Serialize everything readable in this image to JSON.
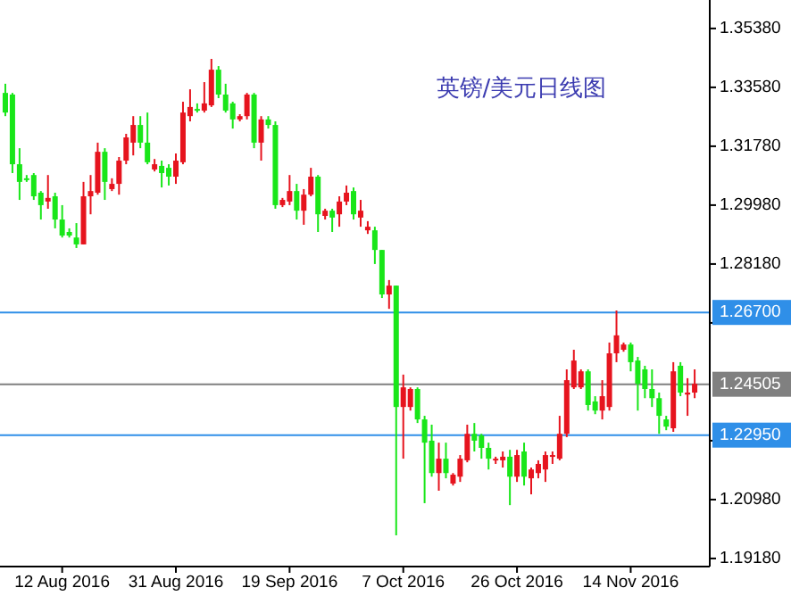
{
  "chart_data": {
    "type": "candlestick",
    "title": "英镑/美元日线图",
    "categories": [
      null,
      null,
      null,
      null,
      null,
      null,
      null,
      null,
      "12 Aug 2016",
      null,
      null,
      null,
      null,
      null,
      null,
      null,
      null,
      null,
      null,
      null,
      null,
      null,
      null,
      null,
      "31 Aug 2016",
      null,
      null,
      null,
      null,
      null,
      null,
      null,
      null,
      null,
      null,
      null,
      null,
      null,
      null,
      null,
      "19 Sep 2016",
      null,
      null,
      null,
      null,
      null,
      null,
      null,
      null,
      null,
      null,
      null,
      null,
      null,
      null,
      null,
      "7 Oct 2016",
      null,
      null,
      null,
      null,
      null,
      null,
      null,
      null,
      null,
      null,
      null,
      null,
      null,
      null,
      null,
      "26 Oct 2016",
      null,
      null,
      null,
      null,
      null,
      null,
      null,
      null,
      null,
      null,
      null,
      null,
      null,
      null,
      null,
      "14 Nov 2016",
      null,
      null,
      null,
      null,
      null,
      null,
      null,
      null,
      null
    ],
    "ohlc": [
      [
        1.3341,
        1.3369,
        1.327,
        1.3281
      ],
      [
        1.3336,
        1.3341,
        1.3096,
        1.3123
      ],
      [
        1.3123,
        1.3172,
        1.3014,
        1.3069
      ],
      [
        1.308,
        1.309,
        1.3069,
        1.3075
      ],
      [
        1.309,
        1.3096,
        1.3014,
        1.3025
      ],
      [
        1.3036,
        1.3041,
        1.2954,
        1.2998
      ],
      [
        1.3009,
        1.309,
        1.2987,
        1.302
      ],
      [
        1.3025,
        1.3036,
        1.2927,
        1.2954
      ],
      [
        1.2954,
        1.2998,
        1.2899,
        1.2905
      ],
      [
        1.2916,
        1.2927,
        1.2899,
        1.2905
      ],
      [
        1.2899,
        1.2943,
        1.2867,
        1.2878
      ],
      [
        1.2878,
        1.3069,
        1.2878,
        1.3025
      ],
      [
        1.3025,
        1.309,
        1.297,
        1.3041
      ],
      [
        1.3036,
        1.3189,
        1.303,
        1.3161
      ],
      [
        1.3161,
        1.3172,
        1.3014,
        1.3069
      ],
      [
        1.3047,
        1.308,
        1.3041,
        1.3063
      ],
      [
        1.3063,
        1.3145,
        1.303,
        1.3134
      ],
      [
        1.3134,
        1.3216,
        1.3123,
        1.3205
      ],
      [
        1.3189,
        1.327,
        1.315,
        1.3243
      ],
      [
        1.3243,
        1.327,
        1.3172,
        1.3189
      ],
      [
        1.3189,
        1.3281,
        1.3123,
        1.3129
      ],
      [
        1.3107,
        1.3139,
        1.3101,
        1.3123
      ],
      [
        1.3118,
        1.3134,
        1.3052,
        1.3096
      ],
      [
        1.3112,
        1.3123,
        1.3058,
        1.3085
      ],
      [
        1.3085,
        1.3156,
        1.3063,
        1.3134
      ],
      [
        1.3129,
        1.3314,
        1.3123,
        1.3281
      ],
      [
        1.327,
        1.3352,
        1.3254,
        1.3298
      ],
      [
        1.3292,
        1.3309,
        1.3281,
        1.3287
      ],
      [
        1.3287,
        1.3374,
        1.3281,
        1.3309
      ],
      [
        1.3303,
        1.3445,
        1.3298,
        1.3412
      ],
      [
        1.3412,
        1.3423,
        1.3325,
        1.3336
      ],
      [
        1.3336,
        1.3369,
        1.3281,
        1.3287
      ],
      [
        1.3309,
        1.3314,
        1.3232,
        1.326
      ],
      [
        1.326,
        1.3276,
        1.3254,
        1.327
      ],
      [
        1.327,
        1.3341,
        1.326,
        1.3336
      ],
      [
        1.3336,
        1.3341,
        1.3172,
        1.3189
      ],
      [
        1.3189,
        1.327,
        1.3134,
        1.326
      ],
      [
        1.326,
        1.327,
        1.3232,
        1.3243
      ],
      [
        1.3243,
        1.3254,
        1.2987,
        1.2998
      ],
      [
        1.2998,
        1.302,
        1.2992,
        1.3014
      ],
      [
        1.3009,
        1.309,
        1.2998,
        1.3041
      ],
      [
        1.3041,
        1.3063,
        1.2954,
        1.2981
      ],
      [
        1.2981,
        1.3047,
        1.2938,
        1.303
      ],
      [
        1.303,
        1.3112,
        1.3025,
        1.3085
      ],
      [
        1.3085,
        1.309,
        1.2916,
        1.297
      ],
      [
        1.2965,
        1.2987,
        1.2954,
        1.2981
      ],
      [
        1.2981,
        1.2987,
        1.2916,
        1.296
      ],
      [
        1.297,
        1.3025,
        1.2932,
        1.3009
      ],
      [
        1.3009,
        1.3058,
        1.2998,
        1.3036
      ],
      [
        1.3041,
        1.3052,
        1.2954,
        1.297
      ],
      [
        1.296,
        1.3014,
        1.2932,
        1.2981
      ],
      [
        1.2921,
        1.2949,
        1.291,
        1.2932
      ],
      [
        1.2921,
        1.2932,
        1.2818,
        1.2861
      ],
      [
        1.2861,
        1.2861,
        1.2714,
        1.2725
      ],
      [
        1.2725,
        1.2769,
        1.2681,
        1.2752
      ],
      [
        1.2752,
        1.2752,
        1.1989,
        1.2381
      ],
      [
        1.2381,
        1.248,
        1.2223,
        1.2441
      ],
      [
        1.2381,
        1.2441,
        1.237,
        1.2436
      ],
      [
        1.2436,
        1.2441,
        1.2332,
        1.2343
      ],
      [
        1.2343,
        1.2354,
        1.2087,
        1.2272
      ],
      [
        1.2278,
        1.2327,
        1.2168,
        1.2179
      ],
      [
        1.2179,
        1.2272,
        1.2125,
        1.2223
      ],
      [
        1.2223,
        1.2272,
        1.2163,
        1.2179
      ],
      [
        1.2147,
        1.2179,
        1.2141,
        1.2174
      ],
      [
        1.2168,
        1.2234,
        1.2152,
        1.2223
      ],
      [
        1.2218,
        1.2327,
        1.2212,
        1.2299
      ],
      [
        1.2299,
        1.2332,
        1.2245,
        1.2278
      ],
      [
        1.2294,
        1.2299,
        1.2223,
        1.2256
      ],
      [
        1.2256,
        1.2272,
        1.219,
        1.2223
      ],
      [
        1.2218,
        1.2229,
        1.2207,
        1.2223
      ],
      [
        1.2218,
        1.2245,
        1.2196,
        1.2229
      ],
      [
        1.2229,
        1.225,
        1.2081,
        1.2168
      ],
      [
        1.2168,
        1.225,
        1.2152,
        1.2234
      ],
      [
        1.2245,
        1.2272,
        1.2141,
        1.2168
      ],
      [
        1.2163,
        1.2196,
        1.2114,
        1.219
      ],
      [
        1.2179,
        1.2218,
        1.2163,
        1.2207
      ],
      [
        1.219,
        1.2245,
        1.2152,
        1.2234
      ],
      [
        1.2229,
        1.2245,
        1.2207,
        1.2234
      ],
      [
        1.2223,
        1.2354,
        1.2218,
        1.2299
      ],
      [
        1.2299,
        1.2496,
        1.2289,
        1.2463
      ],
      [
        1.2441,
        1.2556,
        1.2436,
        1.2523
      ],
      [
        1.2441,
        1.2496,
        1.2436,
        1.249
      ],
      [
        1.249,
        1.2496,
        1.237,
        1.2387
      ],
      [
        1.2398,
        1.2414,
        1.2359,
        1.237
      ],
      [
        1.237,
        1.2463,
        1.2343,
        1.2414
      ],
      [
        1.2381,
        1.2578,
        1.237,
        1.2545
      ],
      [
        1.2545,
        1.2676,
        1.2518,
        1.26
      ],
      [
        1.2556,
        1.2578,
        1.255,
        1.2572
      ],
      [
        1.2572,
        1.2578,
        1.249,
        1.2518
      ],
      [
        1.2523,
        1.2534,
        1.237,
        1.2452
      ],
      [
        1.2496,
        1.2507,
        1.2408,
        1.2436
      ],
      [
        1.2436,
        1.2496,
        1.2381,
        1.2408
      ],
      [
        1.2408,
        1.2425,
        1.2299,
        1.2354
      ],
      [
        1.2343,
        1.2354,
        1.231,
        1.2321
      ],
      [
        1.2316,
        1.2518,
        1.2305,
        1.249
      ],
      [
        1.2507,
        1.2518,
        1.2414,
        1.2425
      ],
      [
        1.2419,
        1.2469,
        1.2354,
        1.2425
      ],
      [
        1.2425,
        1.2496,
        1.2408,
        1.2452
      ]
    ],
    "colors": [
      "#19e619",
      "#19e619",
      "#19e619",
      "#19e619",
      "#19e619",
      "#19e619",
      "#e6141e",
      "#19e619",
      "#19e619",
      "#19e619",
      "#19e619",
      "#e6141e",
      "#e6141e",
      "#e6141e",
      "#19e619",
      "#e6141e",
      "#e6141e",
      "#e6141e",
      "#e6141e",
      "#19e619",
      "#19e619",
      "#e6141e",
      "#19e619",
      "#19e619",
      "#e6141e",
      "#e6141e",
      "#e6141e",
      "#19e619",
      "#e6141e",
      "#e6141e",
      "#19e619",
      "#19e619",
      "#19e619",
      "#e6141e",
      "#e6141e",
      "#19e619",
      "#e6141e",
      "#19e619",
      "#19e619",
      "#e6141e",
      "#e6141e",
      "#19e619",
      "#e6141e",
      "#e6141e",
      "#19e619",
      "#e6141e",
      "#19e619",
      "#e6141e",
      "#e6141e",
      "#19e619",
      "#e6141e",
      "#e6141e",
      "#19e619",
      "#19e619",
      "#e6141e",
      "#19e619",
      "#e6141e",
      "#e6141e",
      "#19e619",
      "#19e619",
      "#19e619",
      "#e6141e",
      "#19e619",
      "#e6141e",
      "#e6141e",
      "#e6141e",
      "#19e619",
      "#19e619",
      "#19e619",
      "#e6141e",
      "#e6141e",
      "#19e619",
      "#e6141e",
      "#19e619",
      "#e6141e",
      "#e6141e",
      "#e6141e",
      "#e6141e",
      "#e6141e",
      "#e6141e",
      "#e6141e",
      "#e6141e",
      "#19e619",
      "#19e619",
      "#e6141e",
      "#e6141e",
      "#e6141e",
      "#e6141e",
      "#19e619",
      "#19e619",
      "#19e619",
      "#19e619",
      "#19e619",
      "#19e619",
      "#e6141e",
      "#19e619",
      "#e6141e",
      "#e6141e"
    ],
    "ylim": [
      1.1896,
      1.3625
    ],
    "yticks": [
      {
        "value": 1.1918,
        "label": "1.19180"
      },
      {
        "value": 1.2098,
        "label": "1.20980"
      },
      {
        "value": 1.2278,
        "label": null
      },
      {
        "value": 1.2638,
        "label": null
      },
      {
        "value": 1.2818,
        "label": "1.28180"
      },
      {
        "value": 1.2998,
        "label": "1.29980"
      },
      {
        "value": 1.3178,
        "label": "1.31780"
      },
      {
        "value": 1.3358,
        "label": "1.33580"
      },
      {
        "value": 1.3538,
        "label": "1.35380"
      }
    ],
    "ref_lines": [
      {
        "axis": "y",
        "value": 1.267,
        "label": "1.26700",
        "color": "#2f8fe8"
      },
      {
        "axis": "y",
        "value": 1.24505,
        "label": "1.24505",
        "color": "#808080"
      },
      {
        "axis": "y",
        "value": 1.2295,
        "label": "1.22950",
        "color": "#2f8fe8"
      }
    ]
  }
}
